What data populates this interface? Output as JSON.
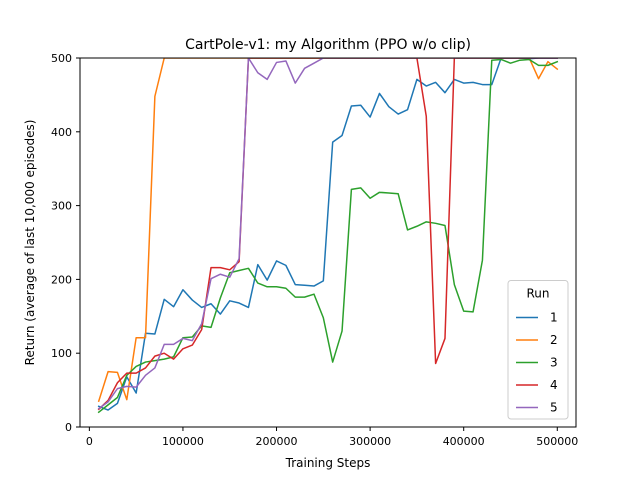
{
  "chart_data": {
    "type": "line",
    "title": "CartPole-v1: my Algorithm (PPO w/o clip)",
    "xlabel": "Training Steps",
    "ylabel": "Return (average of last 10,000 episodes)",
    "xlim": [
      -10000,
      520000
    ],
    "ylim": [
      0,
      500
    ],
    "xticks": [
      0,
      100000,
      200000,
      300000,
      400000,
      500000
    ],
    "yticks": [
      0,
      100,
      200,
      300,
      400,
      500
    ],
    "grid": false,
    "legend": {
      "title": "Run",
      "placement": "lower right"
    },
    "series": [
      {
        "name": "1",
        "color": "#1f77b4",
        "x": [
          10000,
          20000,
          30000,
          40000,
          50000,
          60000,
          70000,
          80000,
          90000,
          100000,
          110000,
          120000,
          130000,
          140000,
          150000,
          160000,
          170000,
          180000,
          190000,
          200000,
          210000,
          220000,
          230000,
          240000,
          250000,
          260000,
          270000,
          280000,
          290000,
          300000,
          310000,
          320000,
          330000,
          340000,
          350000,
          360000,
          370000,
          380000,
          390000,
          400000,
          410000,
          420000,
          430000,
          440000,
          450000,
          460000,
          470000,
          480000,
          490000,
          500000
        ],
        "y": [
          28,
          23,
          32,
          68,
          46,
          127,
          126,
          173,
          163,
          186,
          172,
          162,
          167,
          153,
          171,
          168,
          162,
          220,
          199,
          225,
          219,
          193,
          192,
          191,
          198,
          386,
          395,
          435,
          436,
          420,
          452,
          434,
          424,
          430,
          471,
          462,
          467,
          453,
          471,
          466,
          467,
          464,
          464,
          500,
          500,
          500,
          499,
          500,
          500,
          500
        ]
      },
      {
        "name": "2",
        "color": "#ff7f0e",
        "x": [
          10000,
          20000,
          30000,
          40000,
          50000,
          60000,
          70000,
          80000,
          90000,
          100000,
          360000,
          370000,
          380000,
          390000,
          400000,
          410000,
          420000,
          430000,
          440000,
          450000,
          460000,
          470000,
          480000,
          490000,
          500000
        ],
        "y": [
          35,
          75,
          74,
          37,
          121,
          121,
          448,
          500,
          500,
          500,
          500,
          500,
          500,
          500,
          500,
          500,
          500,
          500,
          500,
          500,
          500,
          500,
          472,
          495,
          485
        ]
      },
      {
        "name": "3",
        "color": "#2ca02c",
        "x": [
          10000,
          20000,
          30000,
          40000,
          50000,
          60000,
          70000,
          80000,
          90000,
          100000,
          110000,
          120000,
          130000,
          140000,
          150000,
          160000,
          170000,
          180000,
          190000,
          200000,
          210000,
          220000,
          230000,
          240000,
          250000,
          260000,
          270000,
          280000,
          290000,
          300000,
          310000,
          320000,
          330000,
          340000,
          350000,
          360000,
          370000,
          380000,
          390000,
          400000,
          410000,
          420000,
          430000,
          440000,
          450000,
          460000,
          470000,
          480000,
          490000,
          500000
        ],
        "y": [
          20,
          30,
          40,
          70,
          82,
          88,
          90,
          92,
          95,
          121,
          122,
          137,
          135,
          175,
          209,
          212,
          215,
          195,
          190,
          190,
          188,
          176,
          176,
          180,
          148,
          88,
          130,
          322,
          324,
          310,
          318,
          317,
          316,
          267,
          272,
          278,
          276,
          273,
          193,
          157,
          156,
          226,
          497,
          498,
          493,
          497,
          498,
          490,
          490,
          495
        ]
      },
      {
        "name": "4",
        "color": "#d62728",
        "x": [
          10000,
          20000,
          30000,
          40000,
          50000,
          60000,
          70000,
          80000,
          90000,
          100000,
          110000,
          120000,
          130000,
          140000,
          150000,
          160000,
          170000,
          180000,
          190000,
          200000,
          210000,
          220000,
          230000,
          240000,
          250000,
          260000,
          270000,
          280000,
          290000,
          300000,
          310000,
          320000,
          330000,
          340000,
          350000,
          360000,
          370000,
          380000,
          390000,
          400000,
          410000,
          420000,
          430000,
          440000,
          450000,
          460000,
          470000,
          480000,
          490000,
          500000
        ],
        "y": [
          24,
          36,
          60,
          73,
          73,
          80,
          96,
          100,
          92,
          106,
          111,
          132,
          216,
          216,
          213,
          224,
          500,
          500,
          500,
          500,
          500,
          500,
          500,
          500,
          500,
          500,
          500,
          500,
          500,
          500,
          500,
          500,
          500,
          500,
          500,
          421,
          86,
          120,
          500,
          500,
          500,
          500,
          500,
          500,
          500,
          500,
          500,
          500,
          500,
          500
        ]
      },
      {
        "name": "5",
        "color": "#9467bd",
        "x": [
          10000,
          20000,
          30000,
          40000,
          50000,
          60000,
          70000,
          80000,
          90000,
          100000,
          110000,
          120000,
          130000,
          140000,
          150000,
          160000,
          170000,
          180000,
          190000,
          200000,
          210000,
          220000,
          230000,
          240000,
          250000,
          260000,
          270000,
          280000,
          290000,
          300000,
          310000,
          320000,
          330000,
          340000,
          350000,
          360000,
          370000,
          380000,
          390000,
          400000,
          410000,
          420000,
          430000,
          440000,
          450000,
          460000,
          470000,
          480000,
          490000,
          500000
        ],
        "y": [
          25,
          34,
          52,
          55,
          54,
          70,
          80,
          112,
          112,
          120,
          117,
          140,
          201,
          207,
          203,
          228,
          500,
          480,
          471,
          494,
          496,
          466,
          486,
          493,
          500,
          500,
          500,
          500,
          500,
          500,
          500,
          500,
          500,
          500,
          500,
          500,
          500,
          500,
          500,
          500,
          500,
          500,
          500,
          500,
          500,
          500,
          500,
          500,
          500,
          500
        ]
      }
    ]
  }
}
